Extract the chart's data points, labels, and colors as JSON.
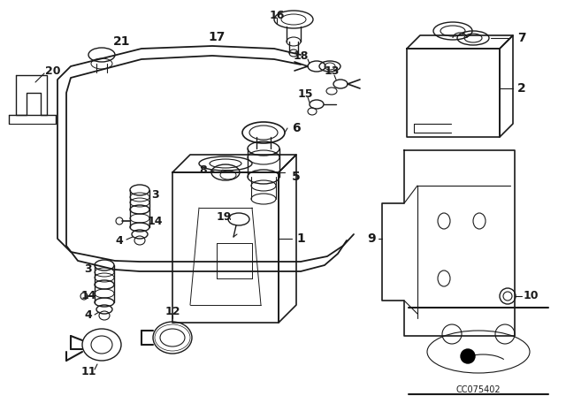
{
  "bg_color": "#ffffff",
  "line_color": "#1a1a1a",
  "diagram_code": "CC075402",
  "figsize": [
    6.4,
    4.48
  ],
  "dpi": 100
}
